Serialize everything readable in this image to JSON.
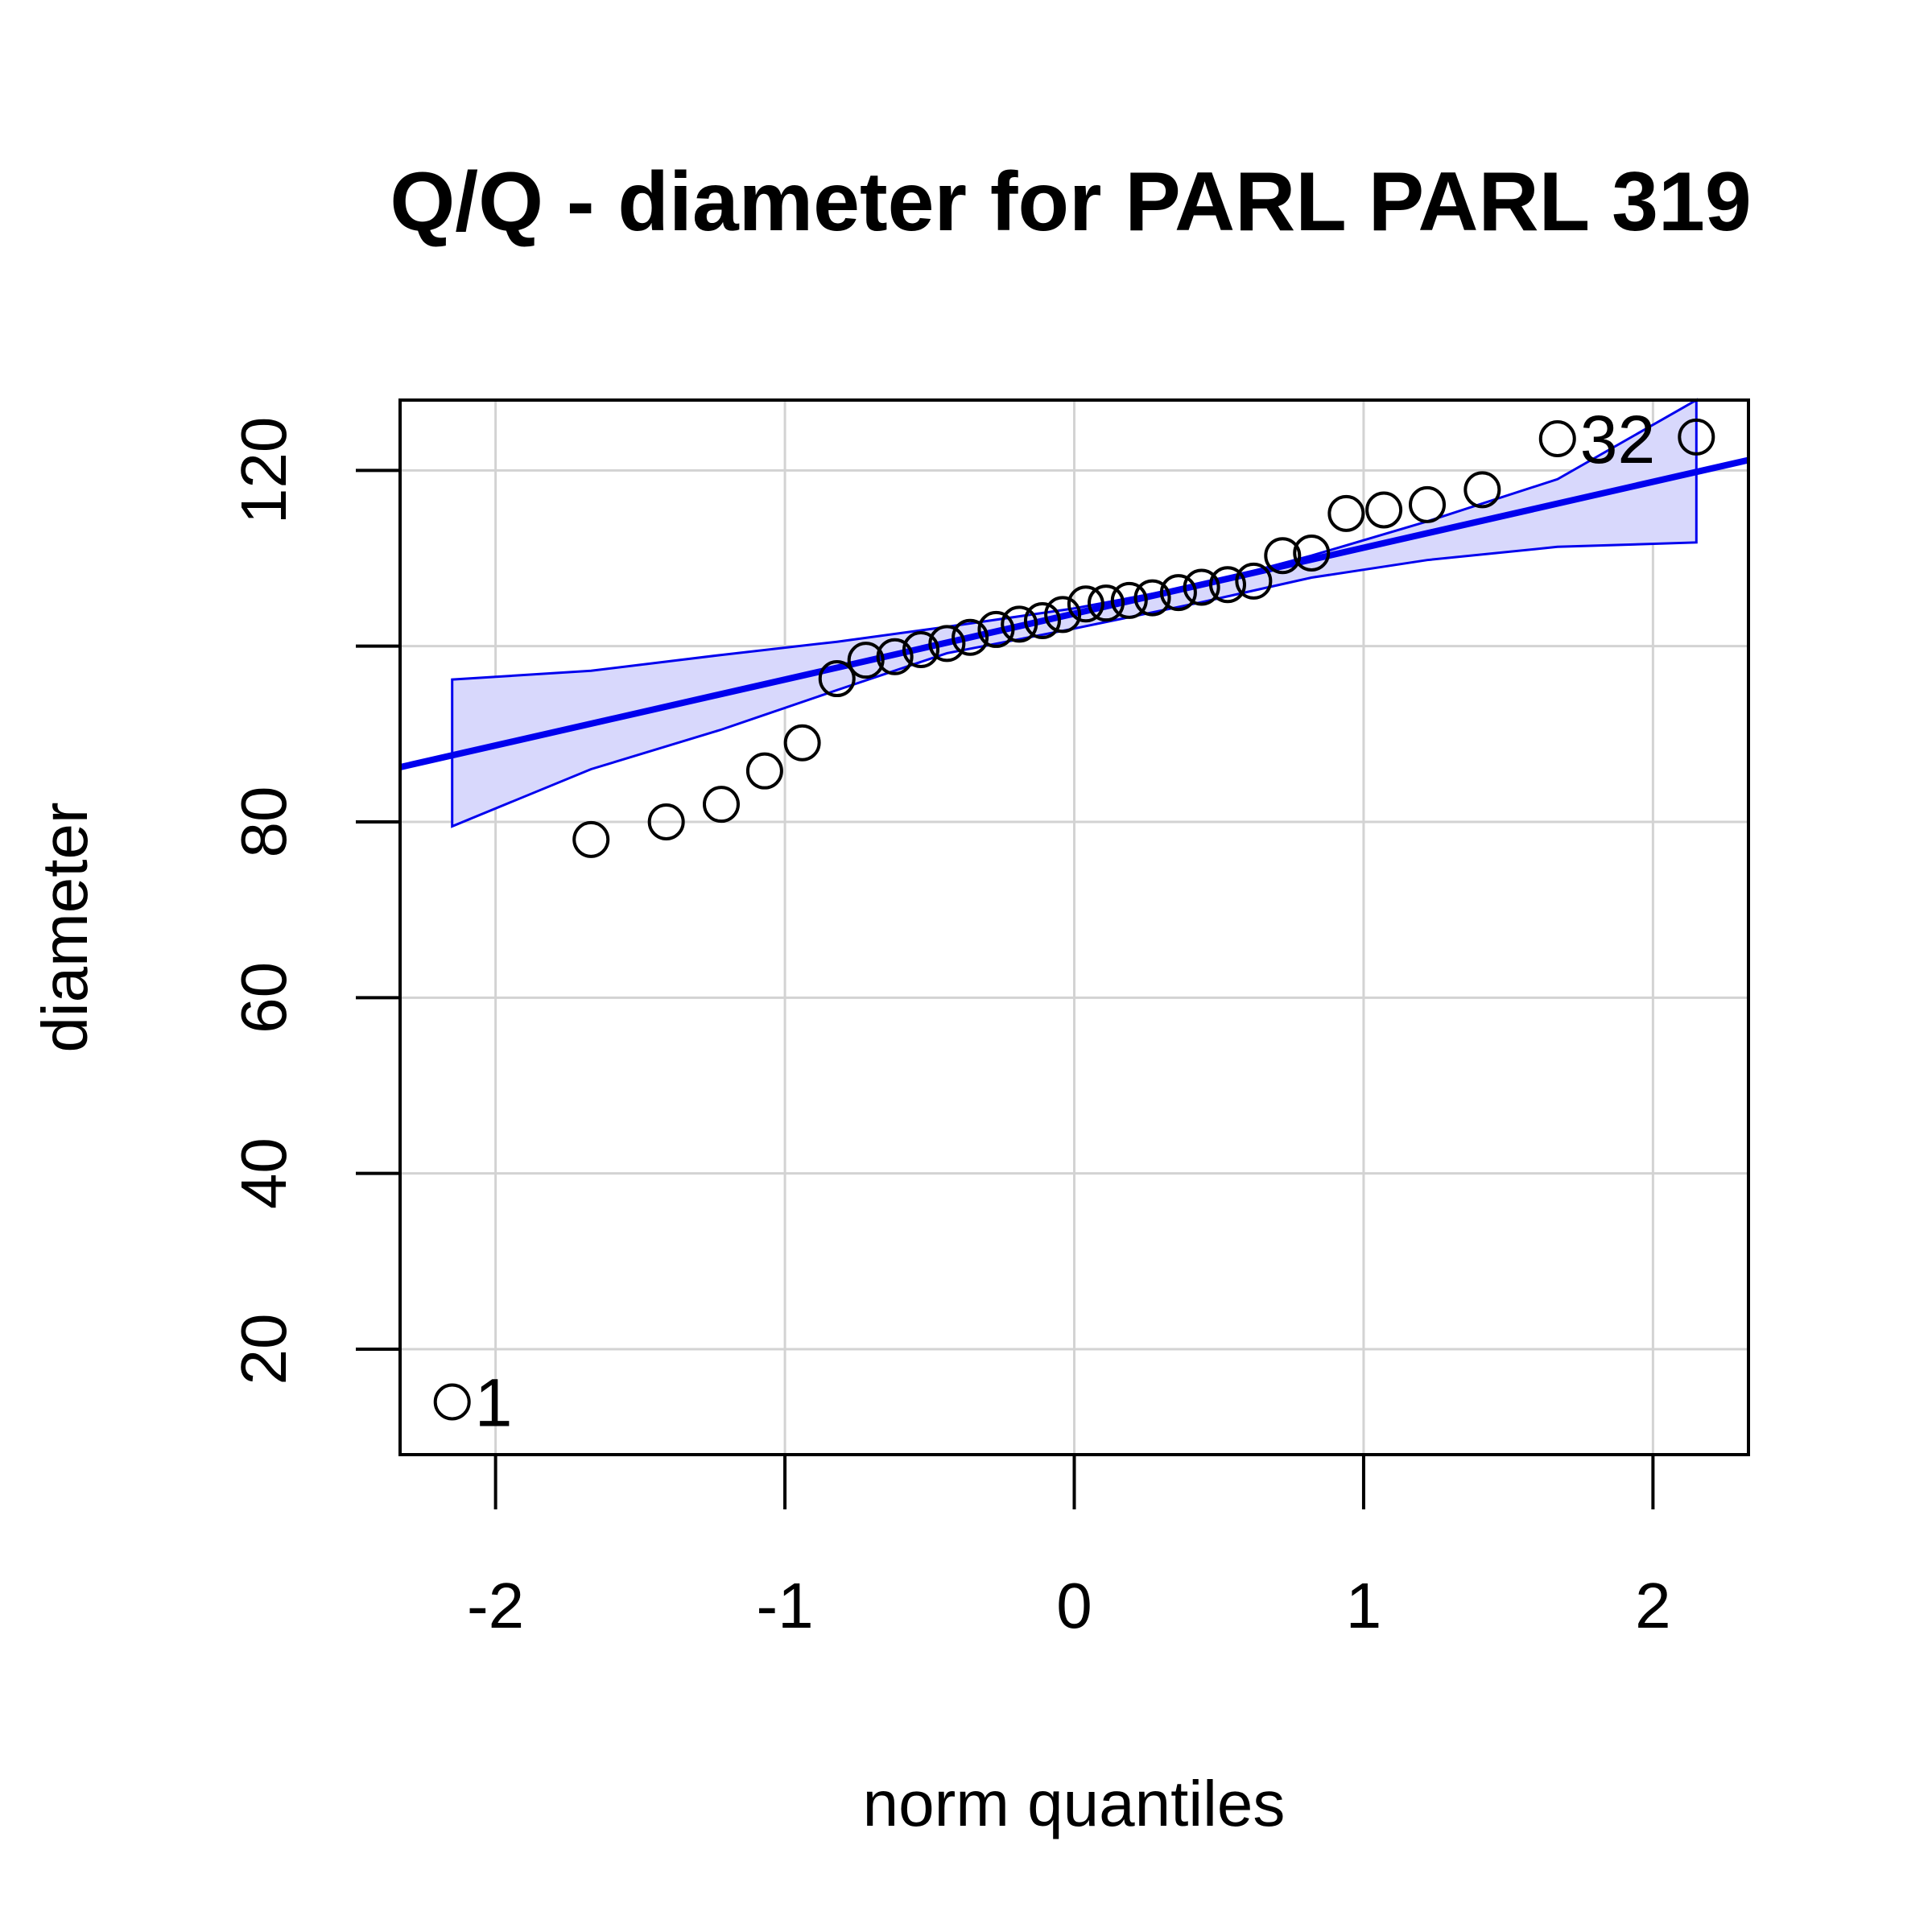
{
  "chart_data": {
    "type": "scatter",
    "title": "Q/Q - diameter for PARL PARL 319",
    "xlabel": "norm quantiles",
    "ylabel": "diameter",
    "xlim": [
      -2.33,
      2.33
    ],
    "ylim": [
      8,
      128
    ],
    "x_ticks": [
      -2,
      -1,
      0,
      1,
      2
    ],
    "x_tick_labels": [
      "-2",
      "-1",
      "0",
      "1",
      "2"
    ],
    "y_ticks": [
      20,
      40,
      60,
      80,
      100,
      120
    ],
    "y_tick_labels": [
      "20",
      "40",
      "60",
      "80",
      "",
      "120"
    ],
    "grid": true,
    "colors": {
      "points": "#000000",
      "reference_line": "#0000ee",
      "envelope_fill": "#d8d8fc",
      "envelope_stroke": "#0000ee",
      "grid": "#d3d3d3"
    },
    "points": [
      {
        "x": -2.15,
        "y": 14.0
      },
      {
        "x": -1.67,
        "y": 78.0
      },
      {
        "x": -1.41,
        "y": 80.0
      },
      {
        "x": -1.22,
        "y": 82.0
      },
      {
        "x": -1.07,
        "y": 85.8
      },
      {
        "x": -0.94,
        "y": 89.0
      },
      {
        "x": -0.82,
        "y": 96.3
      },
      {
        "x": -0.72,
        "y": 98.4
      },
      {
        "x": -0.62,
        "y": 98.8
      },
      {
        "x": -0.53,
        "y": 99.6
      },
      {
        "x": -0.44,
        "y": 100.3
      },
      {
        "x": -0.36,
        "y": 101.0
      },
      {
        "x": -0.27,
        "y": 101.9
      },
      {
        "x": -0.19,
        "y": 102.5
      },
      {
        "x": -0.11,
        "y": 102.9
      },
      {
        "x": -0.04,
        "y": 103.6
      },
      {
        "x": 0.04,
        "y": 104.8
      },
      {
        "x": 0.11,
        "y": 104.9
      },
      {
        "x": 0.19,
        "y": 105.2
      },
      {
        "x": 0.27,
        "y": 105.5
      },
      {
        "x": 0.36,
        "y": 106.1
      },
      {
        "x": 0.44,
        "y": 106.7
      },
      {
        "x": 0.53,
        "y": 107.0
      },
      {
        "x": 0.62,
        "y": 107.4
      },
      {
        "x": 0.72,
        "y": 110.3
      },
      {
        "x": 0.82,
        "y": 110.6
      },
      {
        "x": 0.94,
        "y": 115.1
      },
      {
        "x": 1.07,
        "y": 115.5
      },
      {
        "x": 1.22,
        "y": 116.1
      },
      {
        "x": 1.41,
        "y": 117.8
      },
      {
        "x": 1.67,
        "y": 123.6
      },
      {
        "x": 2.15,
        "y": 123.8
      }
    ],
    "point_labels": [
      {
        "text": "1",
        "point_index": 0
      },
      {
        "text": "32",
        "point_index": 30
      }
    ],
    "reference_line": {
      "intercept": 103.7,
      "slope": 7.5
    },
    "confidence_envelope": {
      "x": [
        -2.15,
        -1.67,
        -1.22,
        -0.82,
        -0.44,
        0.0,
        0.44,
        0.82,
        1.22,
        1.67,
        2.15
      ],
      "upper": [
        96.2,
        97.2,
        99.0,
        100.5,
        102.2,
        104.3,
        107.0,
        110.3,
        114.2,
        119.0,
        128.0
      ],
      "lower": [
        79.5,
        86.0,
        90.5,
        95.0,
        99.2,
        102.0,
        105.0,
        107.8,
        109.8,
        111.3,
        111.8
      ]
    }
  }
}
